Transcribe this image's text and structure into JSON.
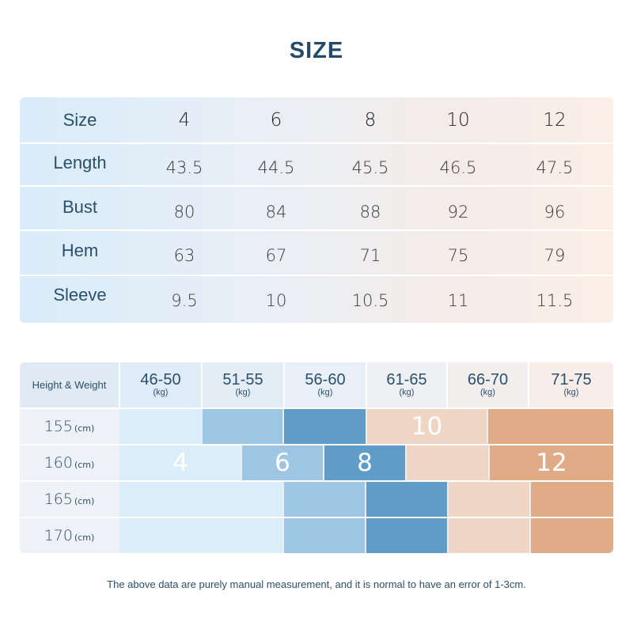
{
  "title": "SIZE",
  "size_table": {
    "header_label": "Size",
    "sizes": [
      "4",
      "6",
      "8",
      "10",
      "12"
    ],
    "rows": [
      {
        "label": "Length",
        "values": [
          "43.5",
          "44.5",
          "45.5",
          "46.5",
          "47.5"
        ]
      },
      {
        "label": "Bust",
        "values": [
          "80",
          "84",
          "88",
          "92",
          "96"
        ]
      },
      {
        "label": "Hem",
        "values": [
          "63",
          "67",
          "71",
          "75",
          "79"
        ]
      },
      {
        "label": "Sleeve",
        "values": [
          "9.5",
          "10",
          "10.5",
          "11",
          "11.5"
        ]
      }
    ]
  },
  "hw_table": {
    "corner_label": "Height & Weight",
    "weight_unit": "(kg)",
    "height_unit": "(cm)",
    "weights": [
      "46-50",
      "51-55",
      "56-60",
      "61-65",
      "66-70",
      "71-75"
    ],
    "heights": [
      "155",
      "160",
      "165",
      "170"
    ],
    "band_labels": {
      "s4": "4",
      "s6": "6",
      "s8": "8",
      "s10": "10",
      "s12": "12"
    },
    "colors": {
      "lightest_blue": "#dcedfa",
      "light_blue": "#9ec6e2",
      "mid_blue": "#5f9dc8",
      "light_peach": "#efd5c4",
      "peach": "#e0ac88"
    }
  },
  "note": "The above data are purely manual measurement, and it is normal to have an error of 1-3cm."
}
